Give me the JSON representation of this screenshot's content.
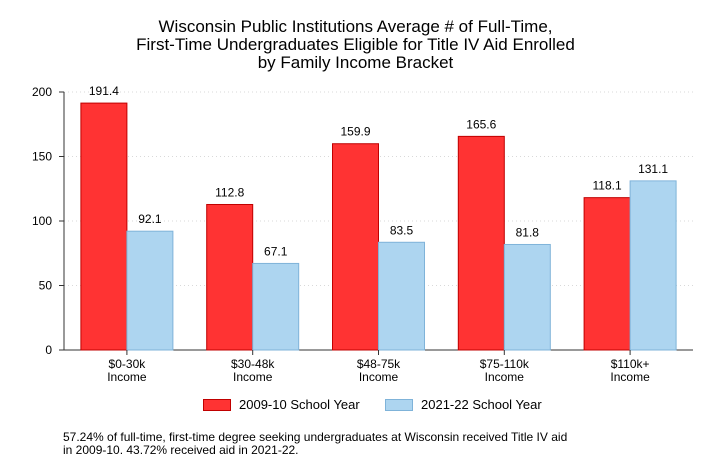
{
  "chart_data": {
    "type": "bar",
    "title_lines": [
      "Wisconsin Public Institutions Average # of Full-Time,",
      "First-Time Undergraduates Eligible for Title IV Aid Enrolled",
      "by Family Income Bracket"
    ],
    "categories": [
      [
        "$0-30k",
        "Income"
      ],
      [
        "$30-48k",
        "Income"
      ],
      [
        "$48-75k",
        "Income"
      ],
      [
        "$75-110k",
        "Income"
      ],
      [
        "$110k+",
        "Income"
      ]
    ],
    "series": [
      {
        "name": "2009-10 School Year",
        "values": [
          191.4,
          112.8,
          159.9,
          165.6,
          118.1
        ],
        "labels": [
          "191.4",
          "112.8",
          "159.9",
          "165.6",
          "118.1"
        ],
        "color": "#ff3333",
        "stroke": "#c00000"
      },
      {
        "name": "2021-22 School Year",
        "values": [
          92.1,
          67.1,
          83.5,
          81.8,
          131.1
        ],
        "labels": [
          "92.1",
          "67.1",
          "83.5",
          "81.8",
          "131.1"
        ],
        "color": "#add5f0",
        "stroke": "#7fb3d9"
      }
    ],
    "ylim": [
      0,
      200
    ],
    "yticks": [
      0,
      50,
      100,
      150,
      200
    ],
    "grid": true,
    "legend_position": "bottom"
  },
  "footnote_lines": [
    "57.24% of full-time, first-time degree seeking undergraduates at Wisconsin received Title IV aid",
    "in 2009-10. 43.72% received aid in 2021-22."
  ]
}
